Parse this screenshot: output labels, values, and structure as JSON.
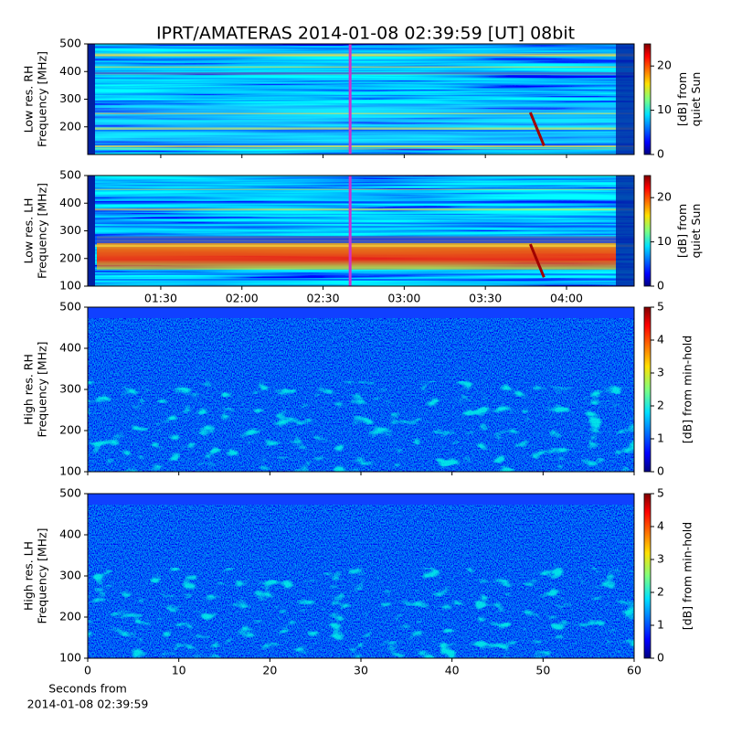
{
  "title": "IPRT/AMATERAS 2014-01-08 02:39:59 [UT]   08bit",
  "chart_data": [
    {
      "type": "heatmap",
      "variant": "low-rh",
      "ylabel": [
        "Low res. RH",
        "Frequency [MHz]"
      ],
      "ylim": [
        100,
        500
      ],
      "yticks": [
        200,
        300,
        400,
        500
      ],
      "xlim": [
        "01:03",
        "04:25"
      ],
      "colorbar_label": [
        "[dB] from",
        "quiet Sun"
      ],
      "clim": [
        0,
        25
      ],
      "cticks": [
        0,
        10,
        20
      ],
      "colormap": "jet",
      "marker_time": "02:40",
      "marker_color": "#cc33cc"
    },
    {
      "type": "heatmap",
      "variant": "low-lh",
      "ylabel": [
        "Low res. LH",
        "Frequency [MHz]"
      ],
      "ylim": [
        100,
        500
      ],
      "yticks": [
        100,
        200,
        300,
        400,
        500
      ],
      "xlim": [
        "01:03",
        "04:25"
      ],
      "xticks": [
        "01:30",
        "02:00",
        "02:30",
        "03:00",
        "03:30",
        "04:00"
      ],
      "colorbar_label": [
        "[dB] from",
        "quiet Sun"
      ],
      "clim": [
        0,
        25
      ],
      "cticks": [
        0,
        10,
        20
      ],
      "colormap": "jet",
      "marker_time": "02:40",
      "marker_color": "#cc33cc"
    },
    {
      "type": "heatmap",
      "variant": "high",
      "ylabel": [
        "High res. RH",
        "Frequency [MHz]"
      ],
      "ylim": [
        100,
        500
      ],
      "yticks": [
        100,
        200,
        300,
        400,
        500
      ],
      "xlim": [
        0,
        60
      ],
      "colorbar_label": [
        "[dB] from min-hold"
      ],
      "clim": [
        0,
        5
      ],
      "cticks": [
        0,
        1,
        2,
        3,
        4,
        5
      ],
      "colormap": "jet"
    },
    {
      "type": "heatmap",
      "variant": "high",
      "ylabel": [
        "High res. LH",
        "Frequency [MHz]"
      ],
      "ylim": [
        100,
        500
      ],
      "yticks": [
        100,
        200,
        300,
        400,
        500
      ],
      "xlim": [
        0,
        60
      ],
      "xticks": [
        0,
        10,
        20,
        30,
        40,
        50,
        60
      ],
      "xlabel": [
        "Seconds from",
        "2014-01-08 02:39:59"
      ],
      "colorbar_label": [
        "[dB] from min-hold"
      ],
      "clim": [
        0,
        5
      ],
      "cticks": [
        0,
        1,
        2,
        3,
        4,
        5
      ],
      "colormap": "jet"
    }
  ]
}
